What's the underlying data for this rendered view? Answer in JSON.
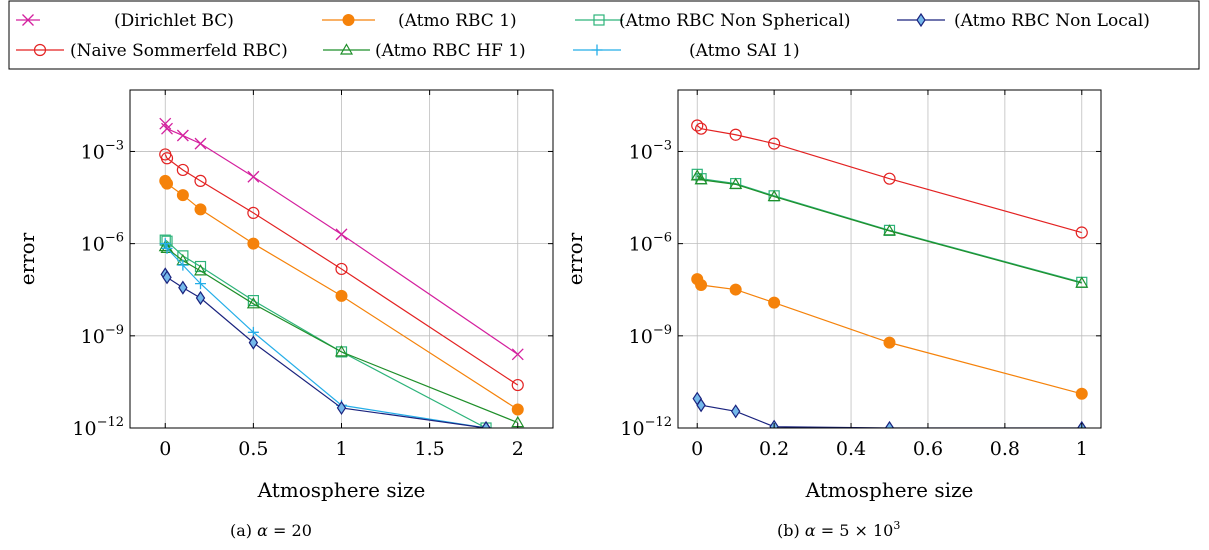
{
  "legend": {
    "entries": [
      {
        "id": "dirichlet",
        "label": "(Dirichlet BC)",
        "color": "#d4209e",
        "marker": "cross-x"
      },
      {
        "id": "atmo_rbc1",
        "label": "(Atmo RBC 1)",
        "color": "#f5820a",
        "marker": "filled-circle"
      },
      {
        "id": "atmo_nonsph",
        "label": "(Atmo RBC Non Spherical)",
        "color": "#2db37a",
        "marker": "square"
      },
      {
        "id": "atmo_nonlocal",
        "label": "(Atmo RBC Non Local)",
        "color": "#1a237e",
        "marker": "diamond"
      },
      {
        "id": "naive",
        "label": "(Naive Sommerfeld RBC)",
        "color": "#e32222",
        "marker": "open-circle"
      },
      {
        "id": "atmo_hf1",
        "label": "(Atmo RBC HF 1)",
        "color": "#1f8f2a",
        "marker": "triangle"
      },
      {
        "id": "atmo_sai1",
        "label": "(Atmo SAI 1)",
        "color": "#25aee8",
        "marker": "plus"
      }
    ]
  },
  "captions": {
    "a_prefix": "(a)",
    "a_alpha": "α",
    "a_value": " = 20",
    "b_prefix": "(b)",
    "b_alpha": "α",
    "b_value": " = 5 × 10",
    "b_exp": "3"
  },
  "chart_data": [
    {
      "type": "line",
      "id": "a",
      "xlabel": "Atmosphere size",
      "ylabel": "error",
      "yscale": "log",
      "xlim": [
        -0.2,
        2.2
      ],
      "ylim": [
        1e-12,
        0.1
      ],
      "xticks": [
        0,
        0.5,
        1,
        1.5,
        2
      ],
      "xtick_labels": [
        "0",
        "0.5",
        "1",
        "1.5",
        "2"
      ],
      "yticks": [
        1e-12,
        1e-09,
        1e-06,
        0.001
      ],
      "ytick_labels": [
        {
          "base": "10",
          "exp": "−12"
        },
        {
          "base": "10",
          "exp": "−9"
        },
        {
          "base": "10",
          "exp": "−6"
        },
        {
          "base": "10",
          "exp": "−3"
        }
      ],
      "grid": true,
      "series": [
        {
          "ref": "dirichlet",
          "x": [
            0,
            0.01,
            0.1,
            0.2,
            0.5,
            1,
            2
          ],
          "y": [
            0.008,
            0.0055,
            0.0033,
            0.0018,
            0.00015,
            2e-06,
            2.5e-10
          ]
        },
        {
          "ref": "naive",
          "x": [
            0,
            0.01,
            0.1,
            0.2,
            0.5,
            1,
            2
          ],
          "y": [
            0.0008,
            0.0006,
            0.00025,
            0.00011,
            1e-05,
            1.5e-07,
            2.5e-11
          ]
        },
        {
          "ref": "atmo_rbc1",
          "x": [
            0,
            0.01,
            0.1,
            0.2,
            0.5,
            1,
            2
          ],
          "y": [
            0.00011,
            9e-05,
            3.8e-05,
            1.3e-05,
            1e-06,
            2e-08,
            4e-12
          ]
        },
        {
          "ref": "atmo_nonsph",
          "x": [
            0,
            0.01,
            0.1,
            0.2,
            0.5,
            1,
            1.82
          ],
          "y": [
            1.3e-06,
            1.2e-06,
            4e-07,
            1.8e-07,
            1.4e-08,
            3e-10,
            1e-12
          ]
        },
        {
          "ref": "atmo_hf1",
          "x": [
            0,
            0.01,
            0.1,
            0.2,
            0.5,
            1,
            2
          ],
          "y": [
            8e-07,
            7e-07,
            2.8e-07,
            1.3e-07,
            1.1e-08,
            3e-10,
            1.5e-12
          ]
        },
        {
          "ref": "atmo_sai1",
          "x": [
            0,
            0.01,
            0.1,
            0.2,
            0.5,
            1,
            1.82
          ],
          "y": [
            1e-06,
            7e-07,
            2e-07,
            5e-08,
            1.3e-09,
            5.5e-12,
            1e-12
          ]
        },
        {
          "ref": "atmo_nonlocal",
          "x": [
            0,
            0.01,
            0.1,
            0.2,
            0.5,
            1,
            1.82
          ],
          "y": [
            1e-07,
            8e-08,
            3.7e-08,
            1.7e-08,
            6e-10,
            4.5e-12,
            1e-12
          ]
        }
      ]
    },
    {
      "type": "line",
      "id": "b",
      "xlabel": "Atmosphere size",
      "ylabel": "error",
      "yscale": "log",
      "xlim": [
        -0.05,
        1.05
      ],
      "ylim": [
        1e-12,
        0.1
      ],
      "xticks": [
        0,
        0.2,
        0.4,
        0.6,
        0.8,
        1
      ],
      "xtick_labels": [
        "0",
        "0.2",
        "0.4",
        "0.6",
        "0.8",
        "1"
      ],
      "yticks": [
        1e-12,
        1e-09,
        1e-06,
        0.001
      ],
      "ytick_labels": [
        {
          "base": "10",
          "exp": "−12"
        },
        {
          "base": "10",
          "exp": "−9"
        },
        {
          "base": "10",
          "exp": "−6"
        },
        {
          "base": "10",
          "exp": "−3"
        }
      ],
      "grid": true,
      "series": [
        {
          "ref": "naive",
          "x": [
            0,
            0.01,
            0.1,
            0.2,
            0.5,
            1
          ],
          "y": [
            0.007,
            0.0055,
            0.0035,
            0.0018,
            0.00013,
            2.3e-06
          ]
        },
        {
          "ref": "atmo_nonsph",
          "x": [
            0,
            0.01,
            0.1,
            0.2,
            0.5,
            1
          ],
          "y": [
            0.00018,
            0.00013,
            9e-05,
            3.6e-05,
            2.7e-06,
            5.5e-08
          ]
        },
        {
          "ref": "atmo_hf1",
          "x": [
            0,
            0.01,
            0.1,
            0.2,
            0.5,
            1
          ],
          "y": [
            0.00016,
            0.00012,
            8.5e-05,
            3.4e-05,
            2.6e-06,
            5.2e-08
          ]
        },
        {
          "ref": "atmo_rbc1",
          "x": [
            0,
            0.01,
            0.1,
            0.2,
            0.5,
            1
          ],
          "y": [
            7e-08,
            4.5e-08,
            3.2e-08,
            1.2e-08,
            6e-10,
            1.3e-11
          ]
        },
        {
          "ref": "atmo_nonlocal",
          "x": [
            0,
            0.01,
            0.1,
            0.2,
            0.5,
            1
          ],
          "y": [
            9e-12,
            5.5e-12,
            3.5e-12,
            1.1e-12,
            1e-12,
            1e-12
          ]
        }
      ]
    }
  ]
}
